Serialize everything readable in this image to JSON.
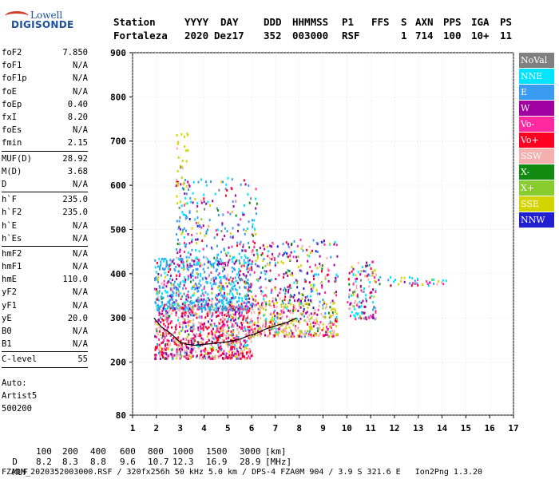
{
  "logo": {
    "line1": "Lowell",
    "line2": "DIGISONDE"
  },
  "header": {
    "labels": [
      "Station",
      "YYYY",
      "DAY",
      "DDD",
      "HHMMSS",
      "P1",
      "FFS",
      "S",
      "AXN",
      "PPS",
      "IGA",
      "PS"
    ],
    "values": [
      "Fortaleza",
      "2020",
      "Dez17",
      "352",
      "003000",
      "RSF",
      "1",
      "714",
      "100",
      "10+",
      "11"
    ]
  },
  "params": {
    "group1": [
      {
        "name": "foF2",
        "value": "7.850"
      },
      {
        "name": "foF1",
        "value": "N/A"
      },
      {
        "name": "foF1p",
        "value": "N/A"
      },
      {
        "name": "foE",
        "value": "N/A"
      },
      {
        "name": "foEp",
        "value": "0.40"
      },
      {
        "name": "fxI",
        "value": "8.20"
      },
      {
        "name": "foEs",
        "value": "N/A"
      },
      {
        "name": "fmin",
        "value": "2.15"
      }
    ],
    "group2": [
      {
        "name": "MUF(D)",
        "value": "28.92"
      },
      {
        "name": "M(D)",
        "value": "3.68"
      },
      {
        "name": "D",
        "value": "N/A"
      }
    ],
    "group3": [
      {
        "name": "h`F",
        "value": "235.0"
      },
      {
        "name": "h`F2",
        "value": "235.0"
      },
      {
        "name": "h`E",
        "value": "N/A"
      },
      {
        "name": "h`Es",
        "value": "N/A"
      }
    ],
    "group4": [
      {
        "name": "hmF2",
        "value": "N/A"
      },
      {
        "name": "hmF1",
        "value": "N/A"
      },
      {
        "name": "hmE",
        "value": "110.0"
      },
      {
        "name": "yF2",
        "value": "N/A"
      },
      {
        "name": "yF1",
        "value": "N/A"
      },
      {
        "name": "yE",
        "value": "20.0"
      },
      {
        "name": "B0",
        "value": "N/A"
      },
      {
        "name": "B1",
        "value": "N/A"
      }
    ],
    "group5": [
      {
        "name": "C-level",
        "value": "55"
      }
    ],
    "auto": [
      "Auto:",
      "Artist5",
      "500200"
    ]
  },
  "legend": [
    {
      "label": "NoVal",
      "color": "#808080"
    },
    {
      "label": "NNE",
      "color": "#00e5ff"
    },
    {
      "label": "E",
      "color": "#3a9cf0"
    },
    {
      "label": "W",
      "color": "#a000a0"
    },
    {
      "label": "Vo-",
      "color": "#ff2aa0"
    },
    {
      "label": "Vo+",
      "color": "#ff0022"
    },
    {
      "label": "SSW",
      "color": "#f3b0ae"
    },
    {
      "label": "X-",
      "color": "#108a10"
    },
    {
      "label": "X+",
      "color": "#88cc30"
    },
    {
      "label": "SSE",
      "color": "#d4d400"
    },
    {
      "label": "NNW",
      "color": "#2020d0"
    }
  ],
  "chart_data": {
    "type": "scatter",
    "xlim": [
      1,
      17
    ],
    "ylim": [
      80,
      900
    ],
    "x_ticks": [
      1,
      2,
      3,
      4,
      5,
      6,
      7,
      8,
      9,
      10,
      11,
      12,
      13,
      14,
      15,
      16,
      17
    ],
    "y_ticks": [
      80,
      200,
      300,
      400,
      500,
      600,
      700,
      800,
      900
    ],
    "grid": true,
    "trace": {
      "x": [
        1.9,
        2.2,
        2.6,
        3.0,
        3.3,
        3.6,
        4.0,
        4.5,
        5.0,
        5.5,
        5.9,
        6.2,
        6.6,
        7.0,
        7.5,
        7.9
      ],
      "y": [
        300,
        280,
        265,
        245,
        240,
        238,
        240,
        243,
        246,
        252,
        260,
        265,
        275,
        282,
        290,
        300
      ]
    }
  },
  "footer": {
    "d_label": "D",
    "d_values": [
      "100",
      "200",
      "400",
      "600",
      "800",
      "1000",
      "1500",
      "3000",
      "[km]"
    ],
    "muf_label": "MUF",
    "muf_values": [
      "8.2",
      "8.3",
      "8.8",
      "9.6",
      "10.7",
      "12.3",
      "16.9",
      "28.9",
      "[MHz]"
    ],
    "file_line": "FZA0M_2020352003000.RSF / 320fx256h 50 kHz 5.0 km / DPS-4 FZA0M 904 / 3.9 S 321.6 E   Ion2Png 1.3.20"
  }
}
